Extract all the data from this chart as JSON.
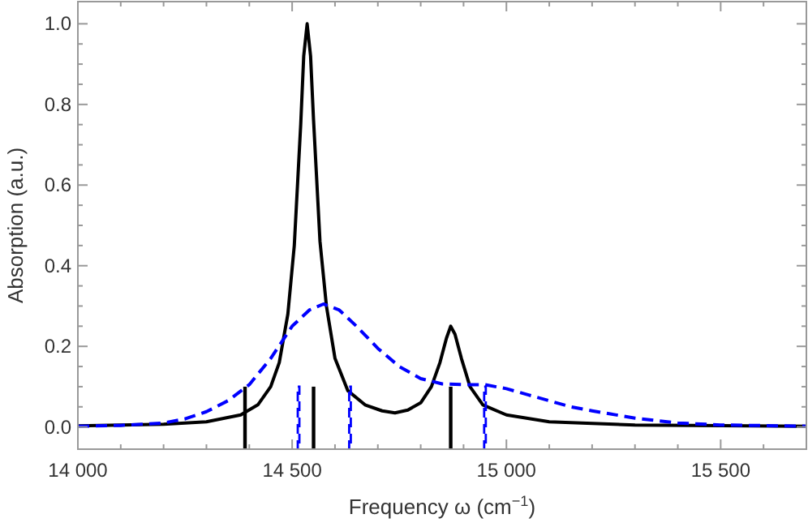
{
  "chart_data": {
    "type": "line",
    "xlabel": "Frequency ω (cm$^{−1}$)",
    "ylabel": "Absorption (a.u.)",
    "xlim": [
      14000,
      15700
    ],
    "ylim": [
      -0.055,
      1.055
    ],
    "xticks": [
      {
        "value": 14000,
        "label": "14 000"
      },
      {
        "value": 14100,
        "label": null
      },
      {
        "value": 14200,
        "label": null
      },
      {
        "value": 14300,
        "label": null
      },
      {
        "value": 14400,
        "label": null
      },
      {
        "value": 14500,
        "label": "14 500"
      },
      {
        "value": 14600,
        "label": null
      },
      {
        "value": 14700,
        "label": null
      },
      {
        "value": 14800,
        "label": null
      },
      {
        "value": 14900,
        "label": null
      },
      {
        "value": 15000,
        "label": "15 000"
      },
      {
        "value": 15100,
        "label": null
      },
      {
        "value": 15200,
        "label": null
      },
      {
        "value": 15300,
        "label": null
      },
      {
        "value": 15400,
        "label": null
      },
      {
        "value": 15500,
        "label": "15 500"
      },
      {
        "value": 15600,
        "label": null
      },
      {
        "value": 15700,
        "label": null
      }
    ],
    "yticks": [
      {
        "value": 0,
        "label": "0.0"
      },
      {
        "value": 0.05,
        "label": null
      },
      {
        "value": 0.1,
        "label": null
      },
      {
        "value": 0.15,
        "label": null
      },
      {
        "value": 0.2,
        "label": "0.2"
      },
      {
        "value": 0.25,
        "label": null
      },
      {
        "value": 0.3,
        "label": null
      },
      {
        "value": 0.35,
        "label": null
      },
      {
        "value": 0.4,
        "label": "0.4"
      },
      {
        "value": 0.45,
        "label": null
      },
      {
        "value": 0.5,
        "label": null
      },
      {
        "value": 0.55,
        "label": null
      },
      {
        "value": 0.6,
        "label": "0.6"
      },
      {
        "value": 0.65,
        "label": null
      },
      {
        "value": 0.7,
        "label": null
      },
      {
        "value": 0.75,
        "label": null
      },
      {
        "value": 0.8,
        "label": "0.8"
      },
      {
        "value": 0.85,
        "label": null
      },
      {
        "value": 0.9,
        "label": null
      },
      {
        "value": 0.95,
        "label": null
      },
      {
        "value": 1.0,
        "label": "1.0"
      }
    ],
    "grid": false,
    "series": [
      {
        "color": "#000000",
        "line_style": "solid",
        "x": [
          14000,
          14200,
          14300,
          14380,
          14420,
          14450,
          14470,
          14490,
          14505,
          14520,
          14527,
          14535,
          14543,
          14550,
          14565,
          14580,
          14600,
          14630,
          14670,
          14710,
          14740,
          14770,
          14800,
          14825,
          14845,
          14860,
          14870,
          14880,
          14895,
          14915,
          14945,
          15000,
          15100,
          15300,
          15700
        ],
        "values": [
          0.003,
          0.007,
          0.013,
          0.03,
          0.055,
          0.1,
          0.16,
          0.28,
          0.45,
          0.75,
          0.92,
          1.0,
          0.92,
          0.76,
          0.46,
          0.3,
          0.17,
          0.09,
          0.055,
          0.04,
          0.035,
          0.042,
          0.06,
          0.1,
          0.16,
          0.22,
          0.25,
          0.23,
          0.17,
          0.1,
          0.055,
          0.03,
          0.013,
          0.005,
          0.002
        ]
      },
      {
        "color": "#0000ff",
        "line_style": "dashed",
        "x": [
          14000,
          14100,
          14200,
          14250,
          14300,
          14350,
          14400,
          14450,
          14500,
          14540,
          14573,
          14610,
          14650,
          14700,
          14750,
          14800,
          14850,
          14900,
          14950,
          15000,
          15050,
          15100,
          15150,
          15200,
          15300,
          15400,
          15500,
          15700
        ],
        "values": [
          0.002,
          0.004,
          0.01,
          0.02,
          0.038,
          0.065,
          0.105,
          0.17,
          0.25,
          0.29,
          0.305,
          0.29,
          0.25,
          0.195,
          0.15,
          0.12,
          0.107,
          0.105,
          0.105,
          0.095,
          0.08,
          0.065,
          0.05,
          0.04,
          0.022,
          0.01,
          0.005,
          0.002
        ]
      },
      {
        "type": "bar",
        "color": "#000000",
        "line_style": "solid",
        "x": [
          14390,
          14550,
          14870
        ],
        "base": [
          -0.055,
          -0.055,
          -0.055
        ],
        "values": [
          0.155,
          0.155,
          0.155
        ]
      },
      {
        "type": "bar",
        "color": "#0000ff",
        "line_style": "dashed",
        "x": [
          14515,
          14635,
          14950
        ],
        "base": [
          -0.055,
          -0.055,
          -0.055
        ],
        "values": [
          0.155,
          0.155,
          0.155
        ]
      }
    ]
  }
}
